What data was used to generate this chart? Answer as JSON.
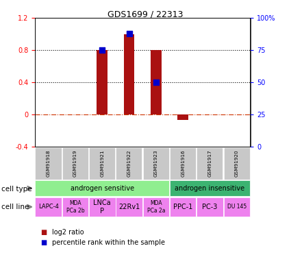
{
  "title": "GDS1699 / 22313",
  "samples": [
    "GSM91918",
    "GSM91919",
    "GSM91921",
    "GSM91922",
    "GSM91923",
    "GSM91916",
    "GSM91917",
    "GSM91920"
  ],
  "log2_ratio": [
    0.0,
    0.0,
    0.8,
    1.0,
    0.8,
    -0.07,
    0.0,
    0.0
  ],
  "percentile_rank": [
    null,
    null,
    75,
    88,
    50,
    null,
    null,
    null
  ],
  "cell_types": [
    {
      "label": "androgen sensitive",
      "start": 0,
      "end": 5,
      "color": "#90EE90"
    },
    {
      "label": "androgen insensitive",
      "start": 5,
      "end": 8,
      "color": "#3CB371"
    }
  ],
  "cell_lines": [
    {
      "label": "LAPC-4",
      "start": 0,
      "end": 1,
      "color": "#EE82EE",
      "fontsize": 6.0
    },
    {
      "label": "MDA\nPCa 2b",
      "start": 1,
      "end": 2,
      "color": "#EE82EE",
      "fontsize": 5.5
    },
    {
      "label": "LNCa\nP",
      "start": 2,
      "end": 3,
      "color": "#EE82EE",
      "fontsize": 7.0
    },
    {
      "label": "22Rv1",
      "start": 3,
      "end": 4,
      "color": "#EE82EE",
      "fontsize": 7.0
    },
    {
      "label": "MDA\nPCa 2a",
      "start": 4,
      "end": 5,
      "color": "#EE82EE",
      "fontsize": 5.5
    },
    {
      "label": "PPC-1",
      "start": 5,
      "end": 6,
      "color": "#EE82EE",
      "fontsize": 7.0
    },
    {
      "label": "PC-3",
      "start": 6,
      "end": 7,
      "color": "#EE82EE",
      "fontsize": 7.0
    },
    {
      "label": "DU 145",
      "start": 7,
      "end": 8,
      "color": "#EE82EE",
      "fontsize": 5.5
    }
  ],
  "bar_color": "#AA1111",
  "dot_color": "#0000CC",
  "ylim_left": [
    -0.4,
    1.2
  ],
  "ylim_right": [
    0,
    100
  ],
  "yticks_left": [
    -0.4,
    0,
    0.4,
    0.8,
    1.2
  ],
  "ytick_labels_left": [
    "-0.4",
    "0",
    "0.4",
    "0.8",
    "1.2"
  ],
  "yticks_right": [
    0,
    25,
    50,
    75,
    100
  ],
  "ytick_labels_right": [
    "0",
    "25",
    "50",
    "75",
    "100%"
  ],
  "dotted_hlines": [
    0.4,
    0.8
  ],
  "zero_line_color": "#CC3300",
  "sample_box_color": "#C8C8C8",
  "legend_log2_color": "#AA1111",
  "legend_pct_color": "#0000CC",
  "left_color": "red",
  "right_color": "blue"
}
